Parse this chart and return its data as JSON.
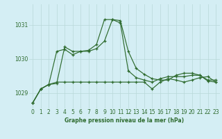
{
  "title": "Graphe pression niveau de la mer (hPa)",
  "bg_color": "#d4eef4",
  "grid_color": "#b8d8d8",
  "line_color": "#2d6a2d",
  "text_color": "#2d6a2d",
  "xlim": [
    -0.5,
    23.5
  ],
  "ylim": [
    1028.55,
    1031.6
  ],
  "yticks": [
    1029,
    1030,
    1031
  ],
  "xticks": [
    0,
    1,
    2,
    3,
    4,
    5,
    6,
    7,
    8,
    9,
    10,
    11,
    12,
    13,
    14,
    15,
    16,
    17,
    18,
    19,
    20,
    21,
    22,
    23
  ],
  "series1": [
    1028.72,
    1029.12,
    1029.25,
    1030.22,
    1030.28,
    1030.12,
    1030.22,
    1030.22,
    1030.3,
    1030.52,
    1031.15,
    1031.12,
    1030.22,
    1029.72,
    1029.55,
    1029.42,
    1029.38,
    1029.38,
    1029.52,
    1029.58,
    1029.58,
    1029.52,
    1029.38,
    1029.38
  ],
  "series2": [
    1028.72,
    1029.12,
    1029.25,
    1029.32,
    1029.32,
    1029.32,
    1029.32,
    1029.32,
    1029.32,
    1029.32,
    1029.32,
    1029.32,
    1029.32,
    1029.32,
    1029.32,
    1029.12,
    1029.32,
    1029.42,
    1029.38,
    1029.32,
    1029.38,
    1029.45,
    1029.48,
    1029.32
  ],
  "series3": [
    1028.72,
    1029.12,
    1029.25,
    1029.28,
    1030.35,
    1030.22,
    1030.22,
    1030.25,
    1030.42,
    1031.15,
    1031.15,
    1031.05,
    1029.65,
    1029.45,
    1029.38,
    1029.32,
    1029.42,
    1029.48,
    1029.48,
    1029.48,
    1029.52,
    1029.52,
    1029.35,
    1029.32
  ]
}
